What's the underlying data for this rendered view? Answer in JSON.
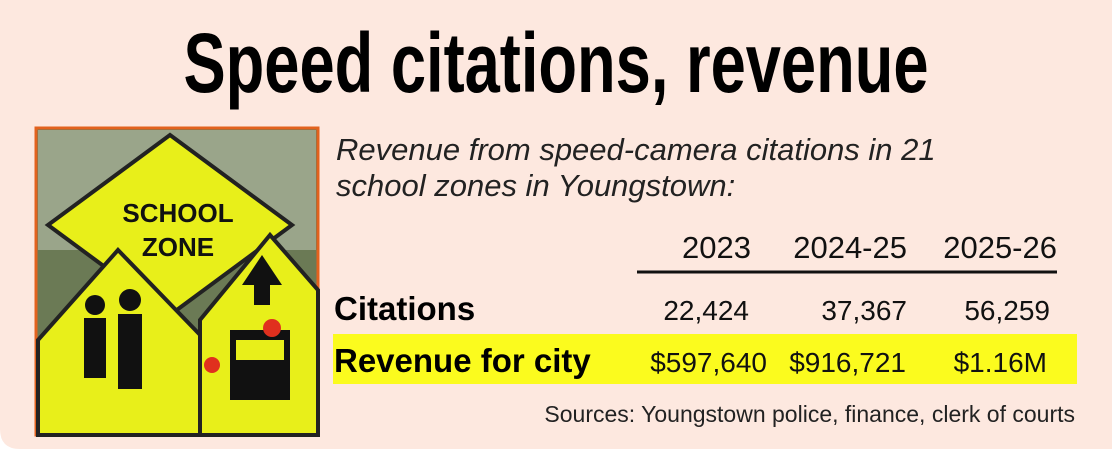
{
  "title": "Speed citations, revenue",
  "photo": {
    "sign_text": [
      "SCHOOL",
      "ZONE"
    ]
  },
  "subtitle": [
    "Revenue from speed-camera citations in 21",
    "school zones in Youngstown:"
  ],
  "table": {
    "columns": [
      "2023",
      "2024-25",
      "2025-26"
    ],
    "rows": [
      {
        "label": "Citations",
        "cells": [
          "22,424",
          "37,367",
          "56,259"
        ]
      },
      {
        "label": "Revenue for city",
        "cells": [
          "$597,640",
          "$916,721",
          "$1.16M"
        ]
      }
    ]
  },
  "source": "Sources: Youngstown police, finance, clerk of courts"
}
